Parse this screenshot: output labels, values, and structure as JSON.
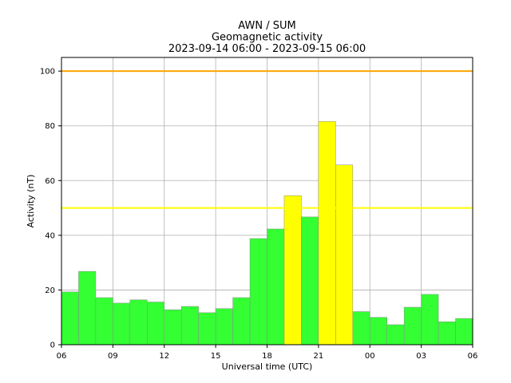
{
  "chart_data": {
    "type": "bar",
    "title_lines": [
      "AWN / SUM",
      "Geomagnetic activity",
      "2023-09-14 06:00 - 2023-09-15 06:00"
    ],
    "xlabel": "Universal time (UTC)",
    "ylabel": "Activity (nT)",
    "ylim": [
      0,
      105
    ],
    "yticks": [
      0,
      20,
      40,
      60,
      80,
      100
    ],
    "xlim_hours": [
      0,
      24
    ],
    "xticks": [
      "06",
      "09",
      "12",
      "15",
      "18",
      "21",
      "00",
      "03",
      "06"
    ],
    "grid": true,
    "values": [
      19.3,
      26.8,
      17.2,
      15.2,
      16.4,
      15.6,
      12.8,
      14.0,
      11.7,
      13.2,
      17.2,
      38.8,
      42.3,
      54.5,
      46.7,
      81.6,
      65.7,
      12.1,
      10.0,
      7.3,
      13.7,
      18.4,
      8.4,
      9.6
    ],
    "thresholds": [
      {
        "value": 50,
        "color": "#ffff00"
      },
      {
        "value": 100,
        "color": "#ffa500"
      }
    ],
    "colors": {
      "below": "#33ff33",
      "above": "#ffff00",
      "bar_edge": "#8a8a8a",
      "grid": "#b0b0b0"
    }
  }
}
